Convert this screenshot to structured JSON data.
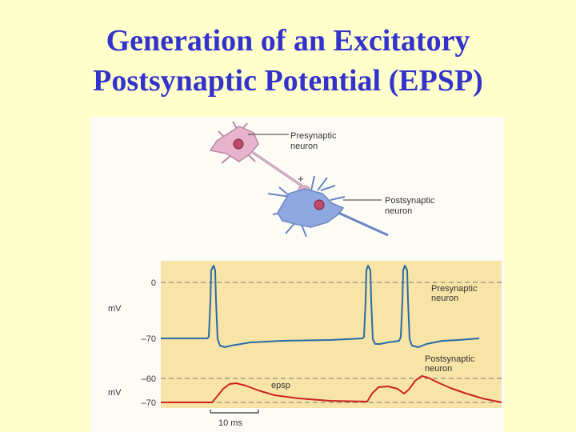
{
  "slide": {
    "title_line1": "Generation of an Excitatory",
    "title_line2": "Postsynaptic Potential (EPSP)"
  },
  "figure": {
    "schematic": {
      "presynaptic_label_1": "Presynaptic",
      "presynaptic_label_2": "neuron",
      "postsynaptic_label_1": "Postsynaptic",
      "postsynaptic_label_2": "neuron",
      "synapse_sign": "+"
    },
    "graph": {
      "upper_unit": "mV",
      "upper_tick_0": "0",
      "upper_tick_-70": "–70",
      "upper_trace_label_1": "Presynaptic",
      "upper_trace_label_2": "neuron",
      "lower_unit": "mV",
      "lower_tick_-60": "–60",
      "lower_tick_-70": "–70",
      "lower_trace_label_1": "Postsynaptic",
      "lower_trace_label_2": "neuron",
      "epsp_label": "epsp",
      "scale_bar_label": "10 ms"
    },
    "colors": {
      "title": "#3333cc",
      "background": "#ffffcc",
      "graph_panel": "#f8e4a6",
      "presynaptic_trace": "#2a6aa8",
      "postsynaptic_trace": "#cc2222",
      "presynaptic_cell": "#e8b4cc",
      "postsynaptic_cell": "#8fa8e0"
    }
  }
}
